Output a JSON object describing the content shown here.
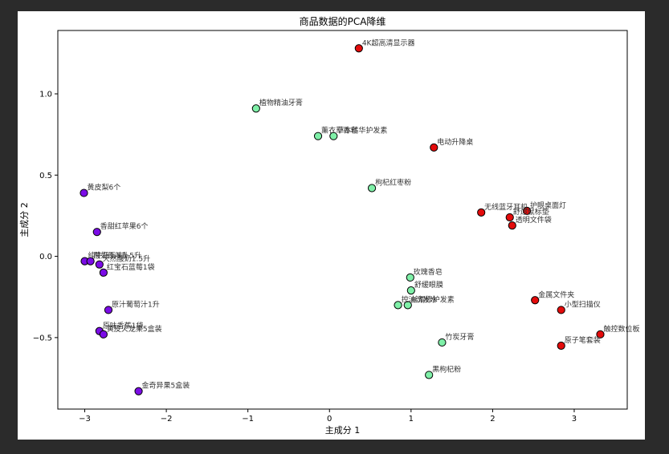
{
  "chart_data": {
    "type": "scatter",
    "title": "商品数据的PCA降维",
    "xlabel": "主成分 1",
    "ylabel": "主成分 2",
    "xlim": [
      -3.33,
      3.65
    ],
    "ylim": [
      -0.94,
      1.39
    ],
    "xticks": [
      -3,
      -2,
      -1,
      0,
      1,
      2,
      3
    ],
    "yticks": [
      -0.5,
      0.0,
      0.5,
      1.0
    ],
    "grid": false,
    "legend": "none",
    "series": [
      {
        "color": "#7b0ce6",
        "points": [
          {
            "x": -3.01,
            "y": 0.39,
            "label": "黄皮梨6个"
          },
          {
            "x": -2.85,
            "y": 0.15,
            "label": "香甜红苹果6个"
          },
          {
            "x": -3.0,
            "y": -0.03,
            "label": "纯牛奶1.5升"
          },
          {
            "x": -2.93,
            "y": -0.03,
            "label": "酸奶原味1.5升"
          },
          {
            "x": -2.82,
            "y": -0.05,
            "label": "天然酸奶1.5升"
          },
          {
            "x": -2.77,
            "y": -0.1,
            "label": "红宝石蓝莓1袋"
          },
          {
            "x": -2.71,
            "y": -0.33,
            "label": "原汁葡萄汁1升"
          },
          {
            "x": -2.82,
            "y": -0.46,
            "label": "原味香蕉1袋"
          },
          {
            "x": -2.77,
            "y": -0.48,
            "label": "黄皮火龙果5盒装"
          },
          {
            "x": -2.34,
            "y": -0.83,
            "label": "金奇异果5盒装"
          }
        ]
      },
      {
        "color": "#7ff0a8",
        "points": [
          {
            "x": -0.9,
            "y": 0.91,
            "label": "植物精油牙膏"
          },
          {
            "x": -0.14,
            "y": 0.74,
            "label": "薰衣草香皂"
          },
          {
            "x": 0.05,
            "y": 0.74,
            "label": "草本精华护发素"
          },
          {
            "x": 0.52,
            "y": 0.42,
            "label": "枸杞红枣粉"
          },
          {
            "x": 0.99,
            "y": -0.13,
            "label": "玫瑰香皂"
          },
          {
            "x": 1.0,
            "y": -0.21,
            "label": "舒缓眼膜"
          },
          {
            "x": 0.84,
            "y": -0.3,
            "label": "控油洗发水"
          },
          {
            "x": 0.96,
            "y": -0.3,
            "label": "丝滑修护发素"
          },
          {
            "x": 1.38,
            "y": -0.53,
            "label": "竹炭牙膏"
          },
          {
            "x": 1.22,
            "y": -0.73,
            "label": "黑枸杞粉"
          }
        ]
      },
      {
        "color": "#e30b0b",
        "points": [
          {
            "x": 0.36,
            "y": 1.28,
            "label": "4K超高清显示器"
          },
          {
            "x": 1.28,
            "y": 0.67,
            "label": "电动升降桌"
          },
          {
            "x": 1.86,
            "y": 0.27,
            "label": "无线蓝牙耳机"
          },
          {
            "x": 2.42,
            "y": 0.28,
            "label": "护眼桌面灯"
          },
          {
            "x": 2.21,
            "y": 0.24,
            "label": "舒适鼠标垫"
          },
          {
            "x": 2.24,
            "y": 0.19,
            "label": "透明文件袋"
          },
          {
            "x": 2.52,
            "y": -0.27,
            "label": "金属文件夹"
          },
          {
            "x": 2.84,
            "y": -0.33,
            "label": "小型扫描仪"
          },
          {
            "x": 3.32,
            "y": -0.48,
            "label": "触控数位板"
          },
          {
            "x": 2.84,
            "y": -0.55,
            "label": "原子笔套装"
          }
        ]
      }
    ]
  }
}
